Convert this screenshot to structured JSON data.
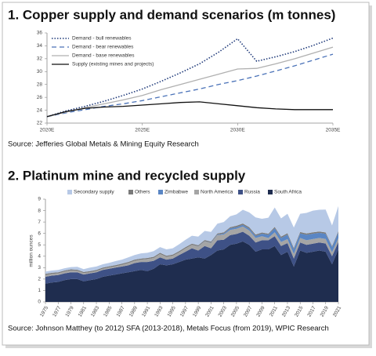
{
  "chart_data": [
    {
      "type": "line",
      "title": "1. Copper supply and demand scenarios (m tonnes)",
      "source": "Source: Jefferies Global Metals & Mining Equity Research",
      "x": [
        2020,
        2021,
        2022,
        2023,
        2024,
        2025,
        2026,
        2027,
        2028,
        2029,
        2030,
        2031,
        2032,
        2033,
        2034,
        2035
      ],
      "xlim": [
        2020,
        2035
      ],
      "xticks": [
        {
          "value": 2020,
          "label": "2020E"
        },
        {
          "value": 2025,
          "label": "2025E"
        },
        {
          "value": 2030,
          "label": "2030E"
        },
        {
          "value": 2035,
          "label": "2035E"
        }
      ],
      "ylim": [
        22,
        36
      ],
      "yticks": [
        22,
        24,
        26,
        28,
        30,
        32,
        34,
        36
      ],
      "legend": "upper left",
      "series": [
        {
          "name": "Demand - bull renewables",
          "color": "#1f3a7a",
          "style": "dotted",
          "values": [
            23,
            23.9,
            24.6,
            25.4,
            26.3,
            27.3,
            28.5,
            29.8,
            31.2,
            33,
            35.1,
            31.6,
            32.3,
            33.1,
            34.1,
            35.2
          ]
        },
        {
          "name": "Demand - bear renewables",
          "color": "#4a72b8",
          "style": "dashed",
          "values": [
            23,
            23.6,
            24.1,
            24.6,
            25,
            25.5,
            26.1,
            26.7,
            27.3,
            28,
            28.6,
            29.3,
            30.1,
            30.9,
            31.8,
            32.7
          ]
        },
        {
          "name": "Demand - base renewables",
          "color": "#b0b0b0",
          "style": "solid",
          "values": [
            23,
            23.7,
            24.4,
            25,
            25.6,
            26.3,
            27.2,
            28,
            28.8,
            29.6,
            30.4,
            30.5,
            31.2,
            32,
            32.9,
            33.8
          ]
        },
        {
          "name": "Supply (existing mines and projects)",
          "color": "#111111",
          "style": "solid",
          "values": [
            23,
            23.8,
            24.3,
            24.5,
            24.6,
            24.8,
            25,
            25.2,
            25.3,
            25,
            24.7,
            24.4,
            24.2,
            24.1,
            24.1,
            24.1
          ]
        }
      ]
    },
    {
      "type": "area",
      "title": "2. Platinum mine and recycled supply",
      "source": "Source: Johnson Matthey (to 2012) SFA (2013-2018), Metals Focus (from 2019), WPIC Research",
      "y_label": "million ounces",
      "x": [
        1975,
        1976,
        1977,
        1978,
        1979,
        1980,
        1981,
        1982,
        1983,
        1984,
        1985,
        1986,
        1987,
        1988,
        1989,
        1990,
        1991,
        1992,
        1993,
        1994,
        1995,
        1996,
        1997,
        1998,
        1999,
        2000,
        2001,
        2002,
        2003,
        2004,
        2005,
        2006,
        2007,
        2008,
        2009,
        2010,
        2011,
        2012,
        2013,
        2014,
        2015,
        2016,
        2017,
        2018,
        2019,
        2020,
        2021
      ],
      "xlim": [
        1975,
        2021
      ],
      "xticks": [
        1975,
        1977,
        1979,
        1981,
        1983,
        1985,
        1987,
        1989,
        1991,
        1993,
        1995,
        1997,
        1999,
        2001,
        2003,
        2005,
        2007,
        2009,
        2011,
        2013,
        2015,
        2017,
        2019,
        2021
      ],
      "ylim": [
        0,
        9
      ],
      "yticks": [
        0,
        1,
        2,
        3,
        4,
        5,
        6,
        7,
        8,
        9
      ],
      "legend": "top",
      "series": [
        {
          "name": "South Africa",
          "color": "#1f2d4f",
          "values": [
            1.6,
            1.7,
            1.75,
            1.9,
            2.0,
            2.0,
            1.8,
            1.9,
            2.0,
            2.2,
            2.3,
            2.4,
            2.5,
            2.6,
            2.7,
            2.8,
            2.7,
            2.9,
            3.3,
            3.2,
            3.3,
            3.5,
            3.7,
            3.8,
            3.9,
            3.8,
            4.1,
            4.5,
            4.6,
            5.0,
            5.1,
            5.3,
            5.0,
            4.4,
            4.6,
            4.6,
            4.9,
            4.1,
            4.4,
            3.1,
            4.5,
            4.3,
            4.4,
            4.5,
            4.4,
            3.3,
            4.6
          ]
        },
        {
          "name": "Russia",
          "color": "#3e5186",
          "values": [
            0.6,
            0.6,
            0.6,
            0.6,
            0.6,
            0.6,
            0.6,
            0.6,
            0.6,
            0.6,
            0.6,
            0.6,
            0.6,
            0.6,
            0.7,
            0.7,
            0.8,
            0.7,
            0.6,
            0.5,
            0.5,
            0.6,
            0.7,
            0.9,
            0.6,
            1.1,
            0.6,
            0.9,
            0.85,
            0.85,
            0.85,
            0.85,
            0.8,
            0.8,
            0.8,
            0.8,
            0.85,
            0.8,
            0.75,
            0.7,
            0.7,
            0.7,
            0.7,
            0.7,
            0.72,
            0.7,
            0.65
          ]
        },
        {
          "name": "North America",
          "color": "#a5a5a5",
          "values": [
            0.15,
            0.15,
            0.15,
            0.15,
            0.15,
            0.12,
            0.12,
            0.1,
            0.1,
            0.1,
            0.12,
            0.12,
            0.15,
            0.2,
            0.2,
            0.2,
            0.25,
            0.25,
            0.3,
            0.25,
            0.25,
            0.25,
            0.3,
            0.3,
            0.35,
            0.4,
            0.45,
            0.45,
            0.45,
            0.45,
            0.45,
            0.45,
            0.45,
            0.4,
            0.35,
            0.2,
            0.35,
            0.35,
            0.35,
            0.4,
            0.4,
            0.4,
            0.4,
            0.4,
            0.4,
            0.35,
            0.35
          ]
        },
        {
          "name": "Zimbabwe",
          "color": "#5a86c4",
          "values": [
            0,
            0,
            0,
            0,
            0,
            0,
            0,
            0,
            0,
            0,
            0,
            0,
            0,
            0,
            0,
            0,
            0,
            0,
            0,
            0,
            0,
            0,
            0,
            0,
            0.02,
            0.02,
            0.03,
            0.05,
            0.1,
            0.15,
            0.15,
            0.15,
            0.17,
            0.18,
            0.23,
            0.28,
            0.35,
            0.35,
            0.4,
            0.4,
            0.4,
            0.48,
            0.48,
            0.45,
            0.45,
            0.45,
            0.48
          ]
        },
        {
          "name": "Others",
          "color": "#7a7a7a",
          "values": [
            0.1,
            0.1,
            0.1,
            0.1,
            0.1,
            0.1,
            0.1,
            0.1,
            0.1,
            0.1,
            0.1,
            0.1,
            0.1,
            0.1,
            0.1,
            0.1,
            0.1,
            0.1,
            0.1,
            0.1,
            0.1,
            0.1,
            0.1,
            0.1,
            0.1,
            0.1,
            0.1,
            0.1,
            0.1,
            0.1,
            0.12,
            0.12,
            0.12,
            0.12,
            0.1,
            0.1,
            0.12,
            0.12,
            0.12,
            0.12,
            0.12,
            0.12,
            0.12,
            0.12,
            0.12,
            0.1,
            0.12
          ]
        },
        {
          "name": "Secondary supply",
          "color": "#b7c9e6",
          "values": [
            0.2,
            0.2,
            0.2,
            0.2,
            0.2,
            0.25,
            0.25,
            0.3,
            0.3,
            0.3,
            0.3,
            0.35,
            0.35,
            0.4,
            0.4,
            0.45,
            0.45,
            0.5,
            0.5,
            0.55,
            0.55,
            0.6,
            0.65,
            0.7,
            0.75,
            0.8,
            0.85,
            0.85,
            0.9,
            0.95,
            1.0,
            1.2,
            1.3,
            1.5,
            1.2,
            1.4,
            1.7,
            1.6,
            1.7,
            1.8,
            1.6,
            1.8,
            1.9,
            1.9,
            2.0,
            1.8,
            2.2
          ]
        }
      ]
    }
  ]
}
